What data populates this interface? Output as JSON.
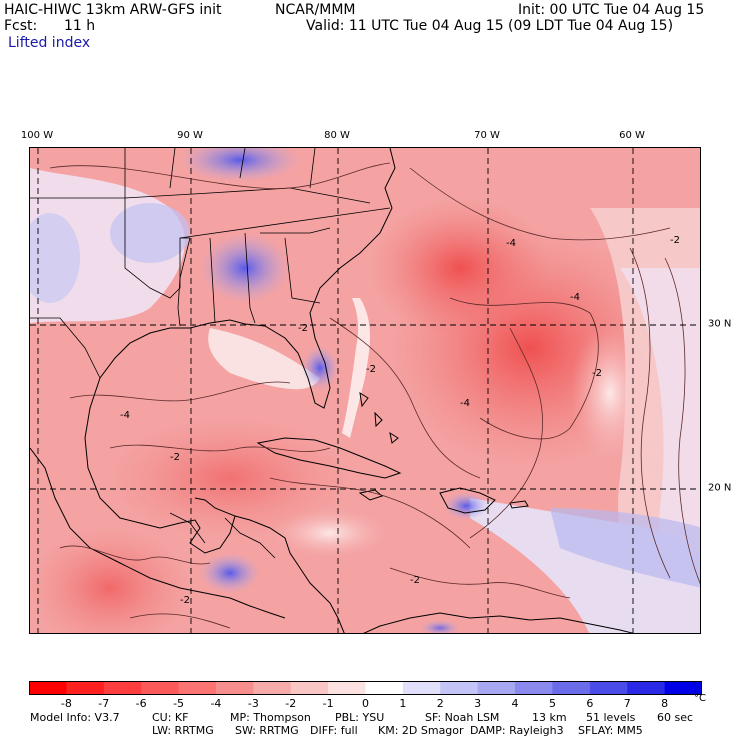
{
  "header": {
    "model": "HAIC-HIWC 13km ARW-GFS init",
    "org": "NCAR/MMM",
    "init": "Init: 00 UTC Tue 04 Aug 15",
    "fcst_label": "Fcst:",
    "fcst_value": "11 h",
    "valid": "Valid: 11 UTC Tue 04 Aug 15 (09 LDT Tue 04 Aug 15)",
    "field": "Lifted index"
  },
  "map": {
    "lon_labels": [
      "100 W",
      "90 W",
      "80 W",
      "70 W",
      "60 W"
    ],
    "lat_labels": [
      "30 N",
      "20 N"
    ],
    "grid_lines": "dashed",
    "dominant_color": "#f29a9a",
    "contour_labels": [
      "-4",
      "-4",
      "-2",
      "-2",
      "-2",
      "-2",
      "-2",
      "-2",
      "-4",
      "-4",
      "-2"
    ]
  },
  "colorbar": {
    "unit": "°C",
    "ticks": [
      "-8",
      "-7",
      "-6",
      "-5",
      "-4",
      "-3",
      "-2",
      "-1",
      "0",
      "1",
      "2",
      "3",
      "4",
      "5",
      "6",
      "7",
      "8"
    ],
    "colors": [
      "#ff0000",
      "#ff2020",
      "#fe3e3e",
      "#fc5a5a",
      "#fa7474",
      "#f78e8e",
      "#f7aaaa",
      "#fac6c6",
      "#fde2e2",
      "#ffffff",
      "#e0e0fb",
      "#c4c4f6",
      "#a8a8f2",
      "#8a8aee",
      "#6c6ceb",
      "#4c4ce8",
      "#2a2ae6",
      "#0000e6"
    ]
  },
  "footer": {
    "line1": [
      "Model Info: V3.7",
      "CU: KF",
      "MP: Thompson",
      "PBL: YSU",
      "SF: Noah LSM",
      "13 km",
      "51 levels",
      "60 sec"
    ],
    "line2": [
      "LW: RRTMG",
      "SW: RRTMG",
      "DIFF: full",
      "KM: 2D Smagor",
      "DAMP: Rayleigh3",
      "SFLAY: MM5"
    ]
  }
}
